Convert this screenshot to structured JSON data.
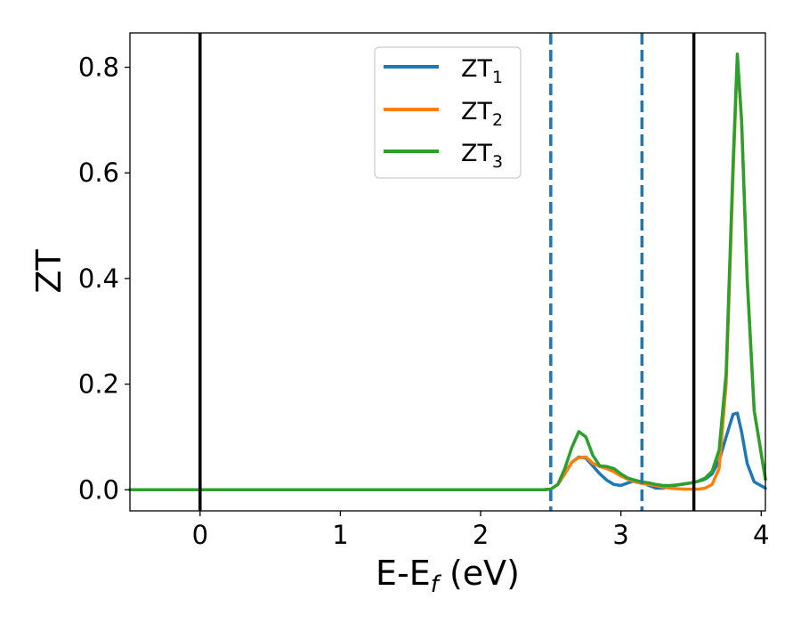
{
  "chart_data": {
    "type": "line",
    "xlabel": "E-E",
    "xlabel_subscript": "f",
    "xlabel_unit": " (eV)",
    "ylabel": "ZT",
    "xlim": [
      -0.5,
      4.03
    ],
    "ylim": [
      -0.04,
      0.865
    ],
    "x_ticks": [
      0,
      1,
      2,
      3,
      4
    ],
    "x_tick_labels": [
      "0",
      "1",
      "2",
      "3",
      "4"
    ],
    "y_ticks": [
      0.0,
      0.2,
      0.4,
      0.6,
      0.8
    ],
    "y_tick_labels": [
      "0.0",
      "0.2",
      "0.4",
      "0.6",
      "0.8"
    ],
    "grid": false,
    "legend_position": "top-center",
    "vertical_lines": [
      {
        "x": 0.0,
        "style": "solid",
        "color": "#000000"
      },
      {
        "x": 3.52,
        "style": "solid",
        "color": "#000000"
      },
      {
        "x": 2.5,
        "style": "dashed",
        "color": "#1f77b4"
      },
      {
        "x": 3.15,
        "style": "dashed",
        "color": "#1f77b4"
      }
    ],
    "series": [
      {
        "name": "ZT",
        "subscript": "1",
        "color": "#1f77b4",
        "points": [
          [
            -0.5,
            0
          ],
          [
            2.45,
            0
          ],
          [
            2.5,
            0.001
          ],
          [
            2.55,
            0.01
          ],
          [
            2.6,
            0.03
          ],
          [
            2.65,
            0.052
          ],
          [
            2.7,
            0.062
          ],
          [
            2.75,
            0.06
          ],
          [
            2.8,
            0.045
          ],
          [
            2.85,
            0.03
          ],
          [
            2.9,
            0.018
          ],
          [
            2.95,
            0.01
          ],
          [
            3.0,
            0.008
          ],
          [
            3.05,
            0.013
          ],
          [
            3.1,
            0.017
          ],
          [
            3.15,
            0.015
          ],
          [
            3.2,
            0.008
          ],
          [
            3.25,
            0.003
          ],
          [
            3.3,
            0.003
          ],
          [
            3.35,
            0.006
          ],
          [
            3.4,
            0.009
          ],
          [
            3.45,
            0.011
          ],
          [
            3.5,
            0.013
          ],
          [
            3.55,
            0.016
          ],
          [
            3.6,
            0.02
          ],
          [
            3.65,
            0.03
          ],
          [
            3.7,
            0.055
          ],
          [
            3.75,
            0.1
          ],
          [
            3.8,
            0.143
          ],
          [
            3.83,
            0.145
          ],
          [
            3.86,
            0.11
          ],
          [
            3.9,
            0.05
          ],
          [
            3.95,
            0.015
          ],
          [
            4.03,
            0.003
          ]
        ]
      },
      {
        "name": "ZT",
        "subscript": "2",
        "color": "#ff7f0e",
        "points": [
          [
            -0.5,
            0
          ],
          [
            2.45,
            0
          ],
          [
            2.5,
            0.001
          ],
          [
            2.55,
            0.01
          ],
          [
            2.6,
            0.03
          ],
          [
            2.65,
            0.052
          ],
          [
            2.7,
            0.061
          ],
          [
            2.75,
            0.062
          ],
          [
            2.8,
            0.05
          ],
          [
            2.85,
            0.044
          ],
          [
            2.9,
            0.04
          ],
          [
            2.95,
            0.034
          ],
          [
            3.0,
            0.026
          ],
          [
            3.05,
            0.02
          ],
          [
            3.1,
            0.015
          ],
          [
            3.15,
            0.012
          ],
          [
            3.2,
            0.01
          ],
          [
            3.25,
            0.008
          ],
          [
            3.3,
            0.005
          ],
          [
            3.35,
            0.003
          ],
          [
            3.4,
            0.002
          ],
          [
            3.45,
            0.001
          ],
          [
            3.5,
            0.001
          ],
          [
            3.55,
            0.001
          ],
          [
            3.6,
            0.003
          ],
          [
            3.65,
            0.01
          ],
          [
            3.7,
            0.04
          ],
          [
            3.75,
            0.2
          ],
          [
            3.8,
            0.6
          ],
          [
            3.83,
            0.82
          ],
          [
            3.86,
            0.7
          ],
          [
            3.9,
            0.4
          ],
          [
            3.95,
            0.15
          ],
          [
            4.03,
            0.02
          ]
        ]
      },
      {
        "name": "ZT",
        "subscript": "3",
        "color": "#2ca02c",
        "points": [
          [
            -0.5,
            0
          ],
          [
            2.45,
            0
          ],
          [
            2.5,
            0.001
          ],
          [
            2.55,
            0.01
          ],
          [
            2.6,
            0.04
          ],
          [
            2.65,
            0.08
          ],
          [
            2.7,
            0.11
          ],
          [
            2.75,
            0.1
          ],
          [
            2.8,
            0.065
          ],
          [
            2.85,
            0.045
          ],
          [
            2.9,
            0.044
          ],
          [
            2.95,
            0.04
          ],
          [
            3.0,
            0.03
          ],
          [
            3.05,
            0.022
          ],
          [
            3.1,
            0.018
          ],
          [
            3.15,
            0.015
          ],
          [
            3.2,
            0.013
          ],
          [
            3.25,
            0.01
          ],
          [
            3.3,
            0.008
          ],
          [
            3.35,
            0.008
          ],
          [
            3.4,
            0.009
          ],
          [
            3.45,
            0.011
          ],
          [
            3.5,
            0.013
          ],
          [
            3.55,
            0.016
          ],
          [
            3.6,
            0.022
          ],
          [
            3.65,
            0.035
          ],
          [
            3.7,
            0.075
          ],
          [
            3.75,
            0.22
          ],
          [
            3.8,
            0.62
          ],
          [
            3.83,
            0.825
          ],
          [
            3.86,
            0.7
          ],
          [
            3.9,
            0.4
          ],
          [
            3.95,
            0.15
          ],
          [
            4.03,
            0.02
          ]
        ]
      }
    ]
  }
}
